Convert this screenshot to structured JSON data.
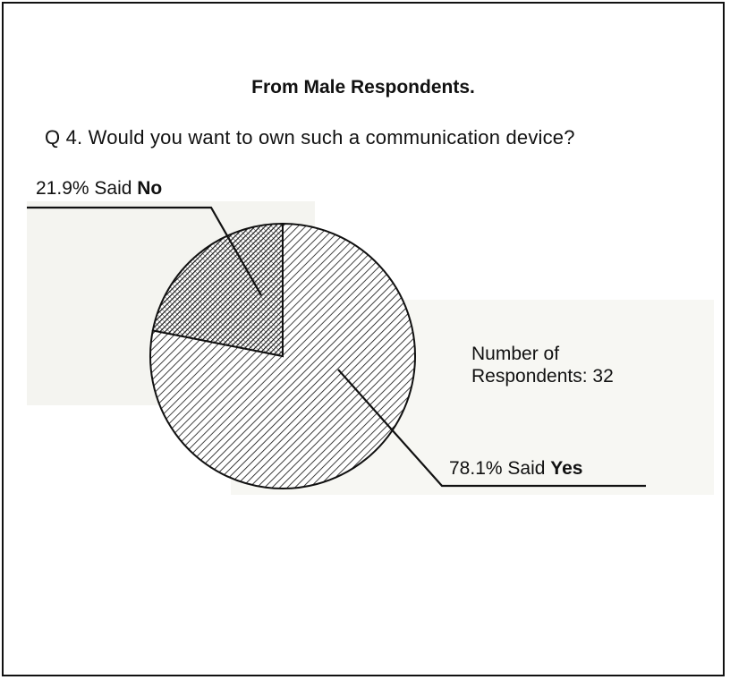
{
  "chart_data": {
    "type": "pie",
    "title": "From Male Respondents.",
    "subtitle": "Q 4. Would you want to own such a communication device?",
    "slices": [
      {
        "label": "Yes",
        "value": 78.1,
        "label_prefix": "78.1% Said",
        "label_emphasis": "Yes",
        "pattern": "diagonal-hatch-light"
      },
      {
        "label": "No",
        "value": 21.9,
        "label_prefix": "21.9% Said",
        "label_emphasis": "No",
        "pattern": "diagonal-hatch-dense"
      }
    ],
    "annotation": {
      "line1": "Number of",
      "line2": "Respondents:  32"
    },
    "colors": {
      "ink": "#111111",
      "background": "#ffffff"
    }
  }
}
